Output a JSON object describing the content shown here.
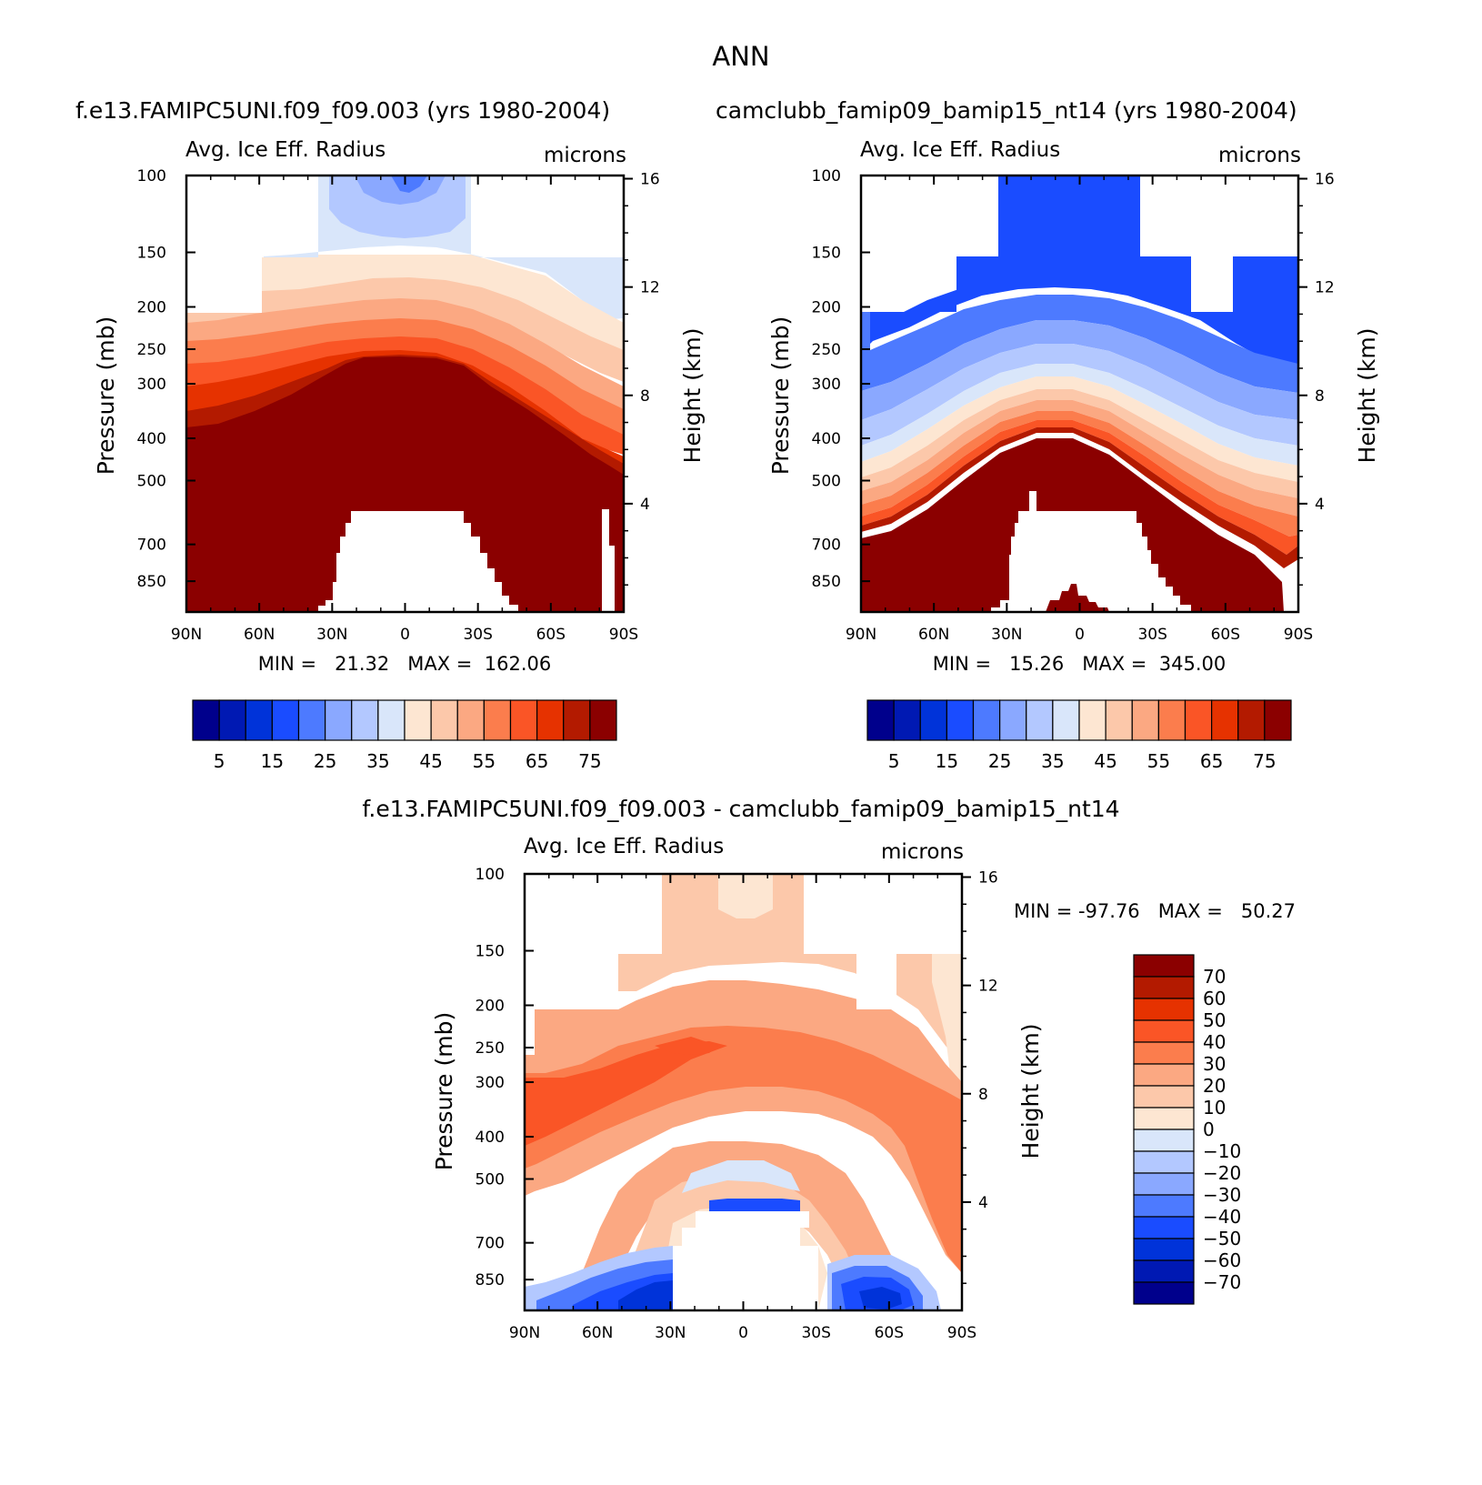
{
  "figure_title": "ANN",
  "panels": [
    {
      "case_title": "f.e13.FAMIPC5UNI.f09_f09.003 (yrs 1980-2004)",
      "field_name": "Avg. Ice Eff. Radius",
      "units": "microns",
      "minmax_text": "MIN =   21.32   MAX =  162.06"
    },
    {
      "case_title": "camclubb_famip09_bamip15_nt14 (yrs 1980-2004)",
      "field_name": "Avg. Ice Eff. Radius",
      "units": "microns",
      "minmax_text": "MIN =   15.26   MAX =  345.00"
    },
    {
      "case_title": "f.e13.FAMIPC5UNI.f09_f09.003 - camclubb_famip09_bamip15_nt14",
      "field_name": "Avg. Ice Eff. Radius",
      "units": "microns",
      "minmax_text": "MIN = -97.76   MAX =   50.27"
    }
  ],
  "chart_data": [
    {
      "type": "heatmap",
      "title": "f.e13.FAMIPC5UNI.f09_f09.003 (yrs 1980-2004)",
      "subtitle": "Avg. Ice Eff. Radius",
      "units": "microns",
      "xlabel": "",
      "ylabel": "Pressure (mb)",
      "y2label": "Height (km)",
      "x_ticks": [
        "90N",
        "60N",
        "30N",
        "0",
        "30S",
        "60S",
        "90S"
      ],
      "y_ticks": [
        100,
        150,
        200,
        250,
        300,
        400,
        500,
        700,
        850
      ],
      "y2_ticks": [
        16,
        12,
        8,
        4
      ],
      "ylim": [
        100,
        1000
      ],
      "contour_levels": [
        5,
        10,
        15,
        20,
        25,
        30,
        35,
        40,
        45,
        50,
        55,
        60,
        65,
        70,
        75
      ],
      "colorbar_labels": [
        "5",
        "15",
        "25",
        "35",
        "45",
        "55",
        "65",
        "75"
      ],
      "min": 21.32,
      "max": 162.06
    },
    {
      "type": "heatmap",
      "title": "camclubb_famip09_bamip15_nt14 (yrs 1980-2004)",
      "subtitle": "Avg. Ice Eff. Radius",
      "units": "microns",
      "xlabel": "",
      "ylabel": "Pressure (mb)",
      "y2label": "Height (km)",
      "x_ticks": [
        "90N",
        "60N",
        "30N",
        "0",
        "30S",
        "60S",
        "90S"
      ],
      "y_ticks": [
        100,
        150,
        200,
        250,
        300,
        400,
        500,
        700,
        850
      ],
      "y2_ticks": [
        16,
        12,
        8,
        4
      ],
      "ylim": [
        100,
        1000
      ],
      "contour_levels": [
        5,
        10,
        15,
        20,
        25,
        30,
        35,
        40,
        45,
        50,
        55,
        60,
        65,
        70,
        75
      ],
      "colorbar_labels": [
        "5",
        "15",
        "25",
        "35",
        "45",
        "55",
        "65",
        "75"
      ],
      "min": 15.26,
      "max": 345.0
    },
    {
      "type": "heatmap",
      "title": "f.e13.FAMIPC5UNI.f09_f09.003 - camclubb_famip09_bamip15_nt14",
      "subtitle": "Avg. Ice Eff. Radius",
      "units": "microns",
      "xlabel": "",
      "ylabel": "Pressure (mb)",
      "y2label": "Height (km)",
      "x_ticks": [
        "90N",
        "60N",
        "30N",
        "0",
        "30S",
        "60S",
        "90S"
      ],
      "y_ticks": [
        100,
        150,
        200,
        250,
        300,
        400,
        500,
        700,
        850
      ],
      "y2_ticks": [
        16,
        12,
        8,
        4
      ],
      "ylim": [
        100,
        1000
      ],
      "contour_levels": [
        -70,
        -60,
        -50,
        -40,
        -30,
        -20,
        -10,
        0,
        10,
        20,
        30,
        40,
        50,
        60,
        70
      ],
      "colorbar_labels": [
        "70",
        "60",
        "50",
        "40",
        "30",
        "20",
        "10",
        "0",
        "−10",
        "−20",
        "−30",
        "−40",
        "−50",
        "−60",
        "−70"
      ],
      "min": -97.76,
      "max": 50.27
    }
  ],
  "colors": {
    "palette": [
      "#00008c",
      "#0019b3",
      "#0033d9",
      "#1a4cff",
      "#4d7aff",
      "#8aa8ff",
      "#b3c8ff",
      "#d9e6fa",
      "#fde6d2",
      "#fcc8aa",
      "#fba882",
      "#fb7d4d",
      "#fa5526",
      "#e63200",
      "#b31a00",
      "#8b0000"
    ],
    "missing": "#ffffff"
  }
}
